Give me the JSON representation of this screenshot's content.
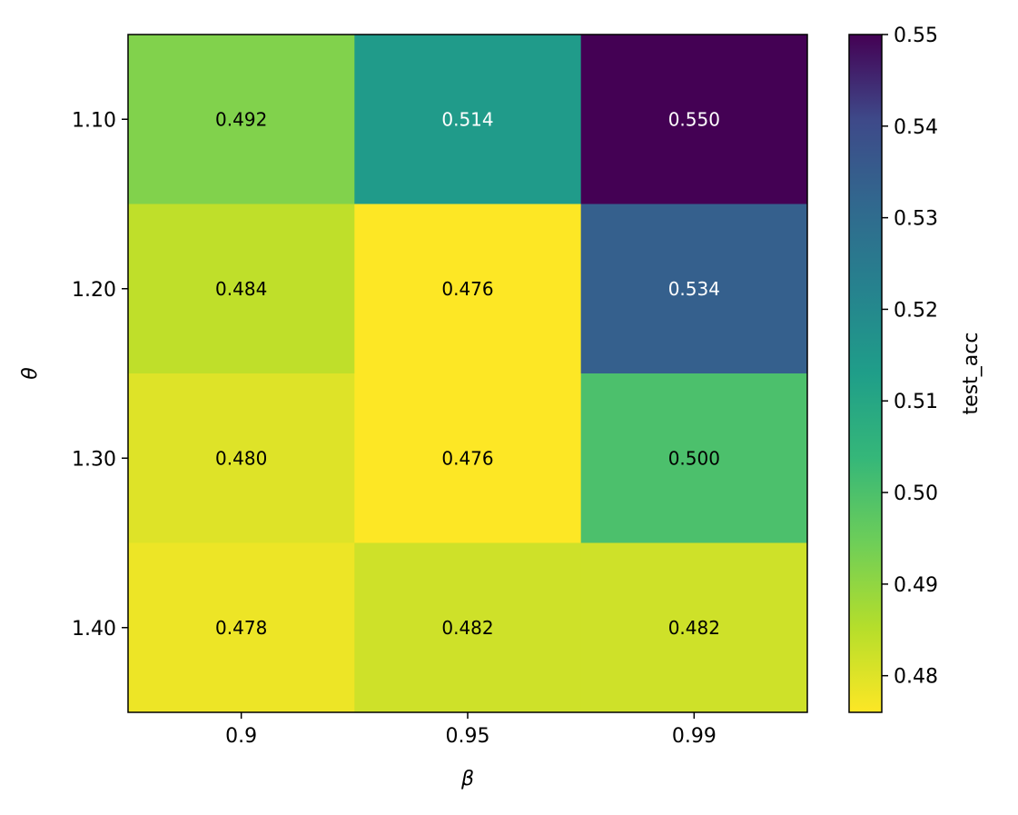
{
  "chart_data": {
    "type": "heatmap",
    "title": "",
    "xlabel": "β",
    "ylabel": "θ",
    "x_categories": [
      "0.9",
      "0.95",
      "0.99"
    ],
    "y_categories": [
      "1.10",
      "1.20",
      "1.30",
      "1.40"
    ],
    "values": [
      [
        0.492,
        0.514,
        0.55
      ],
      [
        0.484,
        0.476,
        0.534
      ],
      [
        0.48,
        0.476,
        0.5
      ],
      [
        0.478,
        0.482,
        0.482
      ]
    ],
    "cell_labels": [
      [
        "0.492",
        "0.514",
        "0.550"
      ],
      [
        "0.484",
        "0.476",
        "0.534"
      ],
      [
        "0.480",
        "0.476",
        "0.500"
      ],
      [
        "0.478",
        "0.482",
        "0.482"
      ]
    ],
    "colormap": "viridis_r",
    "colorbar": {
      "label": "test_acc",
      "range": [
        0.476,
        0.55
      ],
      "ticks": [
        0.48,
        0.49,
        0.5,
        0.51,
        0.52,
        0.53,
        0.54,
        0.55
      ],
      "tick_labels": [
        "0.48",
        "0.49",
        "0.50",
        "0.51",
        "0.52",
        "0.53",
        "0.54",
        "0.55"
      ]
    },
    "grid": false
  }
}
